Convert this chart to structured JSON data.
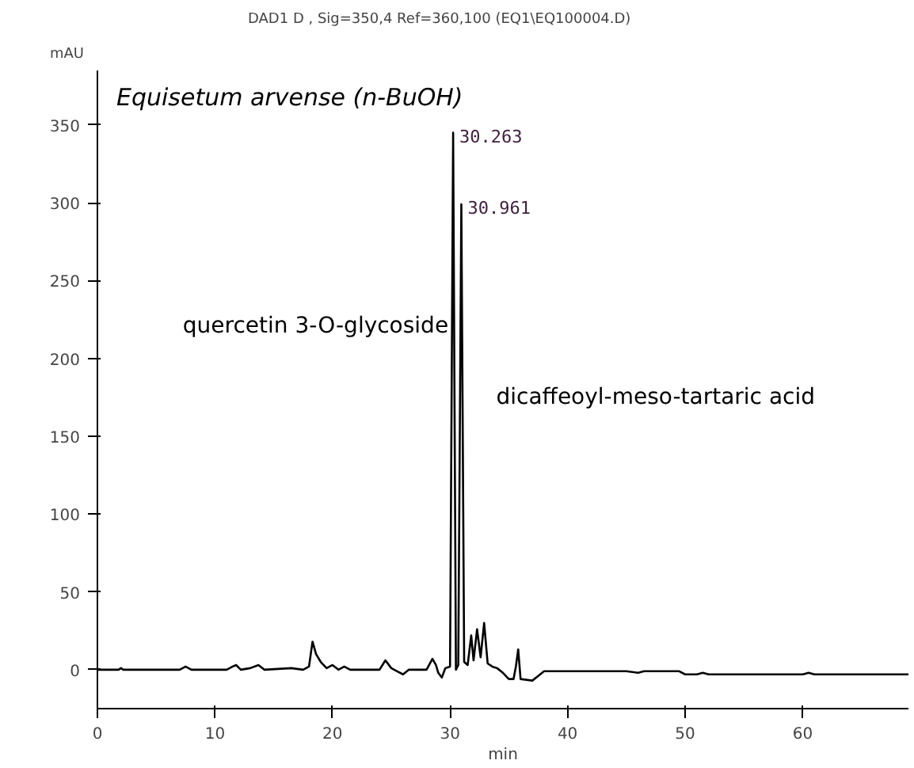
{
  "chart_data": {
    "type": "line",
    "title": "DAD1 D , Sig=350,4 Ref=360,100 (EQ1\\EQ100004.D)",
    "subtitle": "Equisetum arvense (n-BuOH)",
    "ylabel": "mAU",
    "xlabel": "min",
    "x": [
      0,
      1.8,
      2,
      2.2,
      7,
      7.5,
      8,
      11,
      11.5,
      11.8,
      12.2,
      13,
      13.7,
      14.2,
      16.5,
      17.5,
      18,
      18.3,
      18.6,
      19,
      19.5,
      20,
      20.5,
      21,
      21.5,
      24,
      24.5,
      25,
      25.5,
      26,
      26.5,
      28,
      28.5,
      28.8,
      29,
      29.3,
      29.6,
      30,
      30.263,
      30.5,
      30.7,
      30.961,
      31.2,
      31.5,
      31.8,
      32,
      32.3,
      32.6,
      32.9,
      33.2,
      33.6,
      34,
      34.5,
      35,
      35.4,
      35.6,
      35.8,
      36,
      37,
      37.5,
      38,
      40,
      45,
      46,
      46.5,
      49.5,
      50,
      51,
      51.5,
      52,
      60,
      60.5,
      61,
      69
    ],
    "series": [
      {
        "color": "#000000",
        "values": [
          0,
          0,
          1,
          0,
          0,
          2,
          0,
          0,
          2,
          3,
          0,
          1,
          3,
          0,
          1,
          0,
          2,
          18,
          10,
          5,
          1,
          3,
          0,
          2,
          0,
          0,
          6,
          1,
          -1,
          -3,
          0,
          0,
          7,
          3,
          -2,
          -5,
          1,
          2,
          345,
          0,
          3,
          299,
          5,
          3,
          22,
          6,
          26,
          8,
          30,
          4,
          2,
          1,
          -2,
          -6,
          -6,
          2,
          13,
          -6,
          -7,
          -4,
          -1,
          -1,
          -1,
          -2,
          -1,
          -1,
          -3,
          -3,
          -2,
          -3,
          -3,
          -2,
          -3,
          -3
        ]
      }
    ],
    "annotations": [
      "quercetin 3-O-glycoside",
      {
        "text": "30.263",
        "x": 30.263,
        "y": 345
      },
      {
        "text": "30.961",
        "x": 30.961,
        "y": 299
      },
      "dicaffeoyl-meso-tartaric acid"
    ],
    "xlim": [
      0,
      69
    ],
    "ylim": [
      -25,
      385
    ],
    "xticks": [
      0,
      10,
      20,
      30,
      40,
      50,
      60
    ],
    "yticks": [
      0,
      50,
      100,
      150,
      200,
      250,
      300,
      350
    ],
    "grid": false,
    "marker": "none",
    "line_style": "solid"
  }
}
